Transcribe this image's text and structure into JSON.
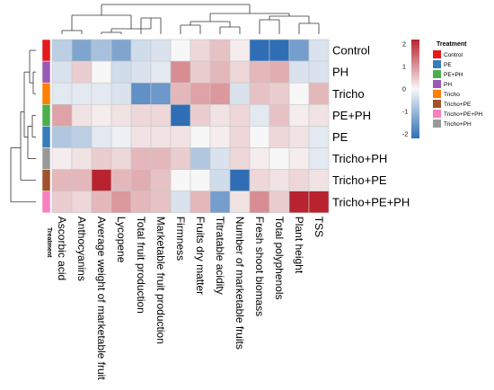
{
  "chart_data": {
    "type": "heatmap",
    "rows": [
      "Control",
      "PH",
      "Tricho",
      "PE+PH",
      "PE",
      "Tricho+PH",
      "Tricho+PE",
      "Tricho+PE+PH"
    ],
    "columns": [
      "Ascorbic acid",
      "Anthocyanins",
      "Average weight of marketable fruit",
      "Lycopene",
      "Total fruit production",
      "Marketable fruit production",
      "Firmness",
      "Fruits dry matter",
      "Titratable acidity",
      "Number of marketable fruits",
      "Fresh shoot biomass",
      "Total polyphenols",
      "Plant height",
      "TSS"
    ],
    "values": [
      [
        -0.6,
        -1.2,
        -0.8,
        -1.2,
        -0.4,
        -0.3,
        0.0,
        0.3,
        0.5,
        0.1,
        -2.0,
        -2.1,
        -1.3,
        -0.3
      ],
      [
        -0.3,
        0.4,
        0.0,
        -0.4,
        -0.3,
        -0.2,
        1.0,
        0.4,
        0.6,
        0.3,
        0.6,
        0.7,
        -0.3,
        -0.3
      ],
      [
        -0.2,
        -0.2,
        -0.2,
        -0.3,
        -1.5,
        -1.4,
        0.6,
        0.8,
        0.9,
        -0.3,
        0.5,
        0.4,
        0.0,
        0.6
      ],
      [
        0.8,
        0.2,
        0.1,
        0.2,
        0.3,
        0.3,
        -2.0,
        0.4,
        0.2,
        0.3,
        -0.2,
        0.5,
        0.1,
        0.2
      ],
      [
        -0.7,
        -0.6,
        -0.2,
        -0.1,
        0.2,
        0.2,
        0.2,
        0.0,
        0.1,
        0.3,
        0.0,
        0.3,
        0.2,
        -0.2
      ],
      [
        0.1,
        0.2,
        0.4,
        0.3,
        0.6,
        0.6,
        0.4,
        -0.7,
        -0.3,
        0.3,
        0.1,
        0.0,
        0.1,
        -0.2
      ],
      [
        0.6,
        0.6,
        2.1,
        0.6,
        0.7,
        0.5,
        0.0,
        0.0,
        -0.4,
        -2.0,
        0.3,
        0.2,
        0.3,
        0.2
      ],
      [
        0.4,
        0.3,
        0.6,
        0.9,
        0.6,
        0.5,
        -0.3,
        0.6,
        -1.3,
        0.2,
        1.0,
        0.4,
        2.1,
        2.0
      ]
    ],
    "color_scale": {
      "min": -2,
      "max": 2,
      "low": "#2f6eb5",
      "mid": "#f7f7f7",
      "high": "#b8232f"
    },
    "legend_ticks": [
      2,
      1,
      0,
      -1,
      -2
    ],
    "annotation": {
      "track_label": "Treatment",
      "title": "Treatment",
      "row_colors": [
        "#e41a1c",
        "#9b59b6",
        "#ff7f00",
        "#4daf4a",
        "#377eb8",
        "#999999",
        "#a0522d",
        "#f781bf"
      ],
      "legend": [
        {
          "label": "Control",
          "color": "#e41a1c"
        },
        {
          "label": "PE",
          "color": "#377eb8"
        },
        {
          "label": "PE+PH",
          "color": "#4daf4a"
        },
        {
          "label": "PH",
          "color": "#9b59b6"
        },
        {
          "label": "Tricho",
          "color": "#ff7f00"
        },
        {
          "label": "Tricho+PE",
          "color": "#a0522d"
        },
        {
          "label": "Tricho+PE+PH",
          "color": "#f781bf"
        },
        {
          "label": "Tricho+PH",
          "color": "#999999"
        }
      ]
    },
    "row_dendrogram": true,
    "column_dendrogram": true,
    "legend_position": "right"
  }
}
